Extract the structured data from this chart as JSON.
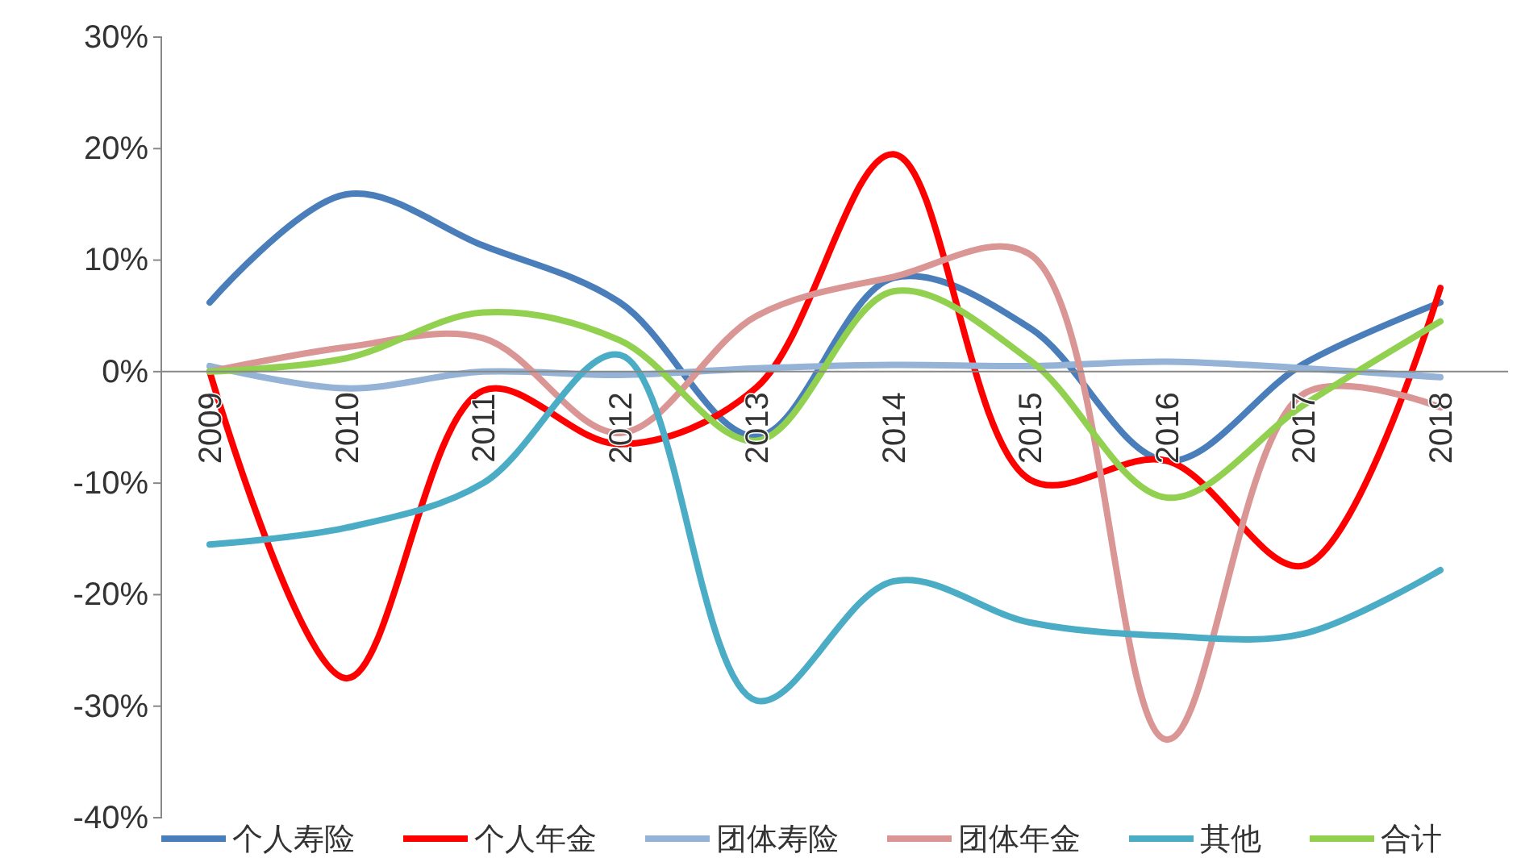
{
  "chart_data": {
    "type": "line",
    "categories": [
      "2009",
      "2010",
      "2011",
      "2012",
      "2013",
      "2014",
      "2015",
      "2016",
      "2017",
      "2018"
    ],
    "series": [
      {
        "name": "个人寿险",
        "color": "#4a7ebb",
        "values": [
          6.2,
          15.9,
          11.3,
          6.2,
          -5.8,
          8.4,
          3.9,
          -8,
          0.7,
          6.2
        ]
      },
      {
        "name": "个人年金",
        "color": "#ff0000",
        "values": [
          0,
          -27.5,
          -1.7,
          -6.5,
          -1.4,
          19.5,
          -9.7,
          -8,
          -17.4,
          7.5
        ]
      },
      {
        "name": "团体寿险",
        "color": "#95b3d7",
        "values": [
          0.5,
          -1.5,
          0,
          -0.3,
          0.3,
          0.6,
          0.5,
          0.9,
          0.3,
          -0.5
        ]
      },
      {
        "name": "团体年金",
        "color": "#d99694",
        "values": [
          0,
          2.2,
          3,
          -5.5,
          5,
          8.5,
          10.5,
          -33,
          -2,
          -3.2
        ]
      },
      {
        "name": "其他",
        "color": "#4bacc6",
        "values": [
          -15.5,
          -14,
          -10,
          1.5,
          -29.5,
          -18.8,
          -22.5,
          -23.7,
          -23.5,
          -17.8
        ]
      },
      {
        "name": "合计",
        "color": "#92d050",
        "values": [
          0,
          1.2,
          5.3,
          2.8,
          -6.2,
          7.2,
          1,
          -11.3,
          -3,
          4.5
        ]
      }
    ],
    "ylim": [
      -40,
      30
    ],
    "yticks": [
      {
        "value": -40,
        "label": "-40%"
      },
      {
        "value": -30,
        "label": "-30%"
      },
      {
        "value": -20,
        "label": "-20%"
      },
      {
        "value": -10,
        "label": "-10%"
      },
      {
        "value": 0,
        "label": "0%"
      },
      {
        "value": 10,
        "label": "10%"
      },
      {
        "value": 20,
        "label": "20%"
      },
      {
        "value": 30,
        "label": "30%"
      }
    ],
    "legend": "bottom",
    "marker": "none",
    "line_style": "solid"
  }
}
